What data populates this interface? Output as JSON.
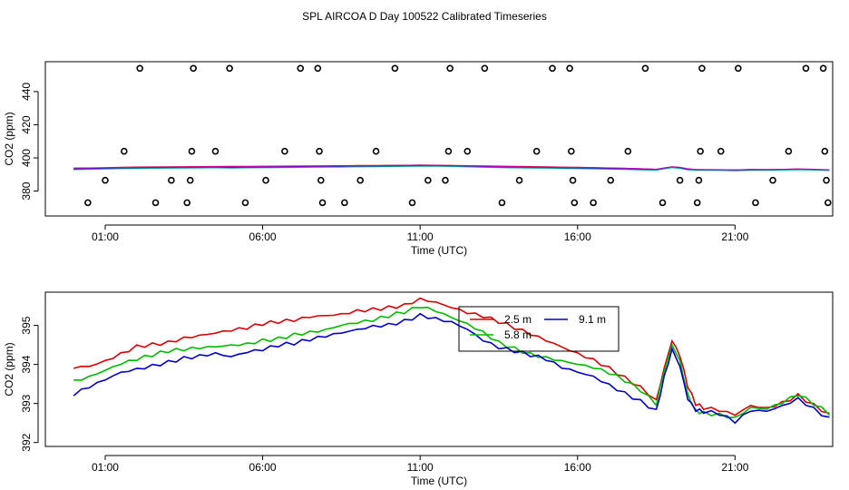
{
  "title": "SPL AIRCOA D  Day 100522  Calibrated Timeseries",
  "chart_data": [
    {
      "type": "scatter",
      "ylabel": "CO2 (ppm)",
      "xlabel": "Time (UTC)",
      "xlim": [
        -0.9,
        24.1
      ],
      "ylim": [
        365,
        458
      ],
      "xticks": [
        1,
        6,
        11,
        16,
        21
      ],
      "xtick_labels": [
        "01:00",
        "06:00",
        "11:00",
        "16:00",
        "21:00"
      ],
      "yticks": [
        380,
        400,
        420,
        440
      ],
      "ytick_labels": [
        "380",
        "400",
        "420",
        "440"
      ],
      "colors": {
        "ref_points": "#000000",
        "line_red": "#dd0000",
        "line_green": "#00bb00",
        "line_blue": "#0000cc",
        "line_cyan": "#00a0a0",
        "line_magenta": "#cc00cc"
      },
      "ref_points": [
        {
          "x": 0.45,
          "y": 373
        },
        {
          "x": 1.0,
          "y": 386.5
        },
        {
          "x": 1.6,
          "y": 404
        },
        {
          "x": 2.1,
          "y": 454
        },
        {
          "x": 2.6,
          "y": 373
        },
        {
          "x": 3.1,
          "y": 386.5
        },
        {
          "x": 3.6,
          "y": 373
        },
        {
          "x": 3.7,
          "y": 386.5
        },
        {
          "x": 3.75,
          "y": 404
        },
        {
          "x": 3.8,
          "y": 454
        },
        {
          "x": 4.5,
          "y": 404
        },
        {
          "x": 4.95,
          "y": 454
        },
        {
          "x": 5.45,
          "y": 373
        },
        {
          "x": 6.1,
          "y": 386.5
        },
        {
          "x": 6.7,
          "y": 404
        },
        {
          "x": 7.2,
          "y": 454
        },
        {
          "x": 7.75,
          "y": 454
        },
        {
          "x": 7.8,
          "y": 404
        },
        {
          "x": 7.85,
          "y": 386.5
        },
        {
          "x": 7.9,
          "y": 373
        },
        {
          "x": 8.6,
          "y": 373
        },
        {
          "x": 9.1,
          "y": 386.5
        },
        {
          "x": 9.6,
          "y": 404
        },
        {
          "x": 10.2,
          "y": 454
        },
        {
          "x": 10.75,
          "y": 373
        },
        {
          "x": 11.25,
          "y": 386.5
        },
        {
          "x": 11.8,
          "y": 386.5
        },
        {
          "x": 11.9,
          "y": 404
        },
        {
          "x": 11.95,
          "y": 454
        },
        {
          "x": 12.5,
          "y": 404
        },
        {
          "x": 13.05,
          "y": 454
        },
        {
          "x": 13.6,
          "y": 373
        },
        {
          "x": 14.15,
          "y": 386.5
        },
        {
          "x": 14.7,
          "y": 404
        },
        {
          "x": 15.2,
          "y": 454
        },
        {
          "x": 15.75,
          "y": 454
        },
        {
          "x": 15.8,
          "y": 404
        },
        {
          "x": 15.85,
          "y": 386.5
        },
        {
          "x": 15.9,
          "y": 373
        },
        {
          "x": 16.5,
          "y": 373
        },
        {
          "x": 17.05,
          "y": 386.5
        },
        {
          "x": 17.6,
          "y": 404
        },
        {
          "x": 18.15,
          "y": 454
        },
        {
          "x": 18.7,
          "y": 373
        },
        {
          "x": 19.25,
          "y": 386.5
        },
        {
          "x": 19.8,
          "y": 373
        },
        {
          "x": 19.85,
          "y": 386.5
        },
        {
          "x": 19.9,
          "y": 404
        },
        {
          "x": 19.95,
          "y": 454
        },
        {
          "x": 20.55,
          "y": 404
        },
        {
          "x": 21.1,
          "y": 454
        },
        {
          "x": 21.65,
          "y": 373
        },
        {
          "x": 22.2,
          "y": 386.5
        },
        {
          "x": 22.7,
          "y": 404
        },
        {
          "x": 23.25,
          "y": 454
        },
        {
          "x": 23.8,
          "y": 454
        },
        {
          "x": 23.85,
          "y": 404
        },
        {
          "x": 23.9,
          "y": 386.5
        },
        {
          "x": 23.95,
          "y": 373
        }
      ],
      "series": [
        {
          "name": "2.5 m",
          "color": "#dd0000",
          "level_offset": 0.3
        },
        {
          "name": "5.8 m",
          "color": "#00bb00",
          "level_offset": 0.1
        },
        {
          "name": "9.1 m",
          "color": "#0000cc",
          "level_offset": -0.2
        }
      ]
    },
    {
      "type": "line",
      "ylabel": "CO2 (ppm)",
      "xlabel": "Time (UTC)",
      "xlim": [
        -0.9,
        24.1
      ],
      "ylim": [
        391.9,
        395.85
      ],
      "xticks": [
        1,
        6,
        11,
        16,
        21
      ],
      "xtick_labels": [
        "01:00",
        "06:00",
        "11:00",
        "16:00",
        "21:00"
      ],
      "yticks": [
        392,
        393,
        394,
        395
      ],
      "ytick_labels": [
        "392",
        "393",
        "394",
        "395"
      ],
      "legend_position": "top-center",
      "series": [
        {
          "name": "2.5 m",
          "color": "#dd0000",
          "x": [
            0.0,
            0.5,
            1.0,
            1.5,
            2.0,
            2.5,
            3.0,
            3.5,
            4.0,
            4.5,
            5.0,
            5.5,
            6.0,
            6.5,
            7.0,
            7.5,
            8.0,
            8.5,
            9.0,
            9.5,
            10.0,
            10.5,
            11.0,
            11.5,
            12.0,
            12.5,
            13.0,
            13.5,
            14.0,
            14.5,
            15.0,
            15.5,
            16.0,
            16.5,
            17.0,
            17.5,
            18.0,
            18.5,
            18.75,
            19.0,
            19.25,
            19.5,
            19.75,
            20.0,
            20.5,
            21.0,
            21.5,
            22.0,
            22.5,
            23.0,
            23.5,
            24.0
          ],
          "values": [
            393.9,
            393.95,
            394.1,
            394.3,
            394.5,
            394.55,
            394.6,
            394.7,
            394.75,
            394.8,
            394.85,
            394.9,
            395.0,
            395.05,
            395.1,
            395.2,
            395.25,
            395.3,
            395.4,
            395.45,
            395.5,
            395.55,
            395.7,
            395.6,
            395.45,
            395.3,
            395.2,
            395.05,
            394.9,
            394.75,
            394.6,
            394.45,
            394.3,
            394.15,
            393.95,
            393.7,
            393.45,
            393.1,
            393.9,
            394.6,
            394.2,
            393.4,
            392.95,
            392.85,
            392.8,
            392.7,
            392.95,
            392.9,
            393.05,
            393.25,
            393.0,
            392.75
          ]
        },
        {
          "name": "5.8 m",
          "color": "#00bb00",
          "x": [
            0.0,
            0.5,
            1.0,
            1.5,
            2.0,
            2.5,
            3.0,
            3.5,
            4.0,
            4.5,
            5.0,
            5.5,
            6.0,
            6.5,
            7.0,
            7.5,
            8.0,
            8.5,
            9.0,
            9.5,
            10.0,
            10.5,
            11.0,
            11.5,
            12.0,
            12.5,
            13.0,
            13.5,
            14.0,
            14.5,
            15.0,
            15.5,
            16.0,
            16.5,
            17.0,
            17.5,
            18.0,
            18.5,
            18.75,
            19.0,
            19.25,
            19.5,
            19.75,
            20.0,
            20.5,
            21.0,
            21.5,
            22.0,
            22.5,
            23.0,
            23.5,
            24.0
          ],
          "values": [
            393.6,
            393.7,
            393.85,
            394.0,
            394.1,
            394.2,
            394.3,
            394.35,
            394.4,
            394.45,
            394.5,
            394.55,
            394.65,
            394.7,
            394.8,
            394.85,
            394.9,
            395.0,
            395.05,
            395.1,
            395.2,
            395.3,
            395.45,
            395.35,
            395.2,
            395.05,
            394.85,
            394.6,
            394.45,
            394.3,
            394.2,
            394.1,
            394.0,
            393.9,
            393.75,
            393.55,
            393.3,
            392.95,
            393.8,
            394.5,
            394.1,
            393.25,
            392.85,
            392.8,
            392.75,
            392.65,
            392.9,
            392.85,
            393.0,
            393.2,
            392.95,
            392.7
          ]
        },
        {
          "name": "9.1 m",
          "color": "#0000cc",
          "x": [
            0.0,
            0.5,
            1.0,
            1.5,
            2.0,
            2.5,
            3.0,
            3.5,
            4.0,
            4.5,
            5.0,
            5.5,
            6.0,
            6.5,
            7.0,
            7.5,
            8.0,
            8.5,
            9.0,
            9.5,
            10.0,
            10.5,
            11.0,
            11.5,
            12.0,
            12.5,
            13.0,
            13.5,
            14.0,
            14.5,
            15.0,
            15.5,
            16.0,
            16.5,
            17.0,
            17.5,
            18.0,
            18.5,
            18.75,
            19.0,
            19.25,
            19.5,
            19.75,
            20.0,
            20.5,
            21.0,
            21.5,
            22.0,
            22.5,
            23.0,
            23.5,
            24.0
          ],
          "values": [
            393.2,
            393.4,
            393.6,
            393.8,
            393.9,
            394.0,
            394.1,
            394.2,
            394.25,
            394.3,
            394.2,
            394.3,
            394.35,
            394.45,
            394.5,
            394.6,
            394.7,
            394.8,
            394.9,
            395.0,
            395.05,
            395.15,
            395.3,
            395.2,
            395.1,
            394.9,
            394.6,
            394.4,
            394.3,
            394.2,
            394.1,
            393.9,
            393.8,
            393.7,
            393.5,
            393.3,
            393.1,
            392.85,
            393.7,
            394.4,
            393.95,
            393.1,
            392.8,
            392.75,
            392.7,
            392.5,
            392.8,
            392.8,
            392.95,
            393.15,
            392.9,
            392.65
          ]
        }
      ]
    }
  ]
}
